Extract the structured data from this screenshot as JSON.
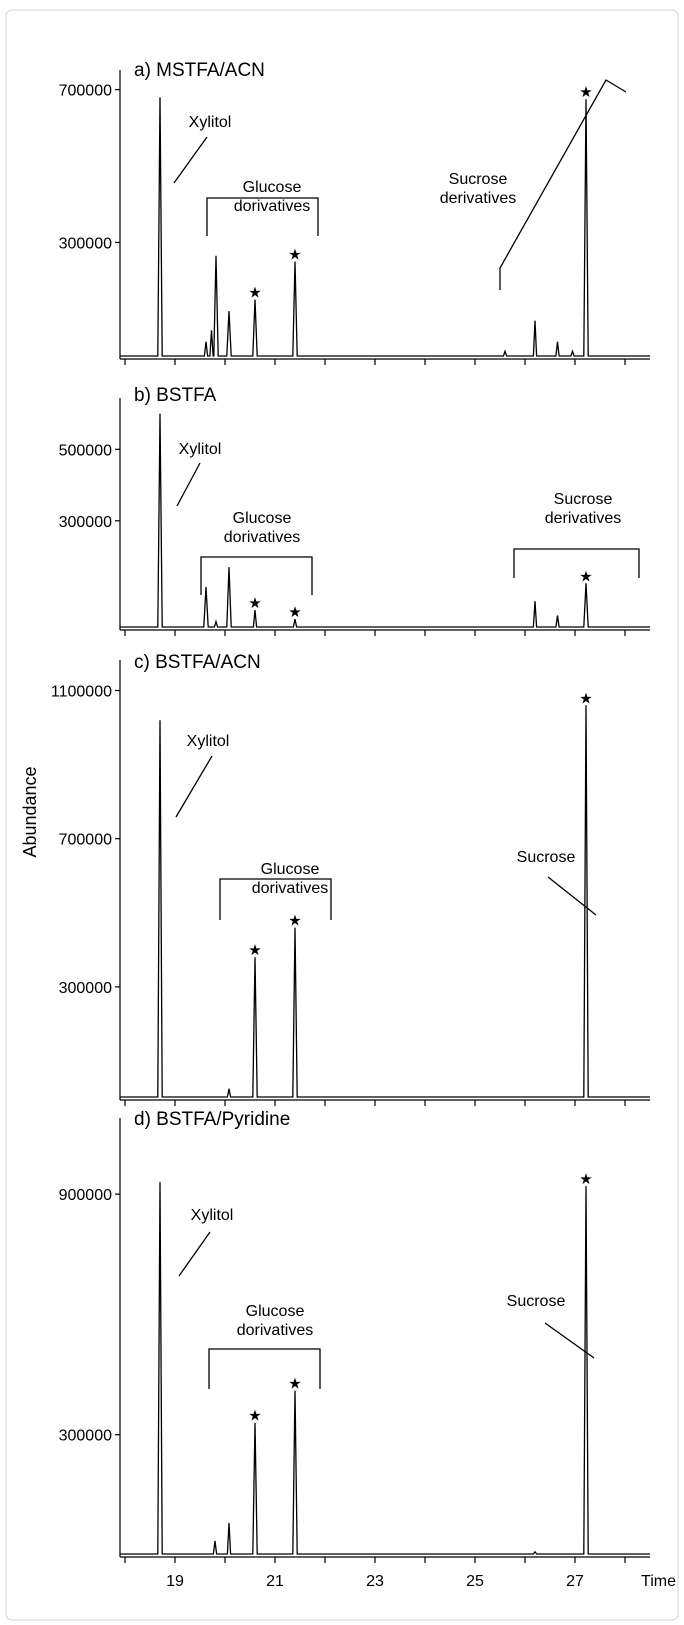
{
  "chart_data": {
    "type": "line",
    "ylabel": "Abundance",
    "xlabel": "Time",
    "xlim": [
      17.9,
      28.5
    ],
    "x_ticks": [
      19,
      21,
      23,
      25,
      27
    ],
    "x_tick_labels": [
      "19",
      "21",
      "23",
      "25",
      "27"
    ],
    "panels": [
      {
        "title": "a) MSTFA/ACN",
        "ylim": [
          0,
          720000
        ],
        "y_ticks": [
          300000,
          700000
        ],
        "y_tick_labels": [
          "300000",
          "700000"
        ],
        "peaks": [
          {
            "x": 18.7,
            "y": 680000
          },
          {
            "x": 19.62,
            "y": 40000
          },
          {
            "x": 19.73,
            "y": 70000
          },
          {
            "x": 19.82,
            "y": 265000
          },
          {
            "x": 20.08,
            "y": 120000
          },
          {
            "x": 20.6,
            "y": 150000,
            "star": true
          },
          {
            "x": 21.4,
            "y": 250000,
            "star": true
          },
          {
            "x": 25.6,
            "y": 15000
          },
          {
            "x": 26.2,
            "y": 95000
          },
          {
            "x": 26.65,
            "y": 40000
          },
          {
            "x": 26.95,
            "y": 15000
          },
          {
            "x": 27.22,
            "y": 675000,
            "star": true
          }
        ],
        "annotations": [
          {
            "lines": [
              "Xylitol"
            ],
            "target": "Xylitol"
          },
          {
            "lines": [
              "Glucose",
              "dorivatives"
            ],
            "target": "Glucose derivatives"
          },
          {
            "lines": [
              "Sucrose",
              "derivatives"
            ],
            "target": "Sucrose derivatives"
          }
        ]
      },
      {
        "title": "b) BSTFA",
        "ylim": [
          0,
          610000
        ],
        "y_ticks": [
          300000,
          500000
        ],
        "y_tick_labels": [
          "300000",
          "500000"
        ],
        "peaks": [
          {
            "x": 18.7,
            "y": 600000
          },
          {
            "x": 19.62,
            "y": 115000
          },
          {
            "x": 19.82,
            "y": 18000
          },
          {
            "x": 20.08,
            "y": 170000
          },
          {
            "x": 20.6,
            "y": 50000,
            "star": true
          },
          {
            "x": 21.4,
            "y": 25000,
            "star": true
          },
          {
            "x": 26.2,
            "y": 75000
          },
          {
            "x": 26.65,
            "y": 35000
          },
          {
            "x": 27.22,
            "y": 125000,
            "star": true
          }
        ],
        "annotations": [
          {
            "lines": [
              "Xylitol"
            ],
            "target": "Xylitol"
          },
          {
            "lines": [
              "Glucose",
              "dorivatives"
            ],
            "target": "Glucose derivatives"
          },
          {
            "lines": [
              "Sucrose",
              "derivatives"
            ],
            "target": "Sucrose derivatives"
          }
        ]
      },
      {
        "title": "c) BSTFA/ACN",
        "ylim": [
          0,
          1150000
        ],
        "y_ticks": [
          300000,
          700000,
          1100000
        ],
        "y_tick_labels": [
          "300000",
          "700000",
          "1100000"
        ],
        "peaks": [
          {
            "x": 18.7,
            "y": 1020000
          },
          {
            "x": 20.08,
            "y": 25000
          },
          {
            "x": 20.6,
            "y": 380000,
            "star": true
          },
          {
            "x": 21.4,
            "y": 460000,
            "star": true
          },
          {
            "x": 27.22,
            "y": 1060000,
            "star": true
          }
        ],
        "annotations": [
          {
            "lines": [
              "Xylitol"
            ],
            "target": "Xylitol"
          },
          {
            "lines": [
              "Glucose",
              "dorivatives"
            ],
            "target": "Glucose derivatives"
          },
          {
            "lines": [
              "Sucrose"
            ],
            "target": "Sucrose"
          }
        ]
      },
      {
        "title": "d) BSTFA/Pyridine",
        "ylim": [
          0,
          1060000
        ],
        "y_ticks": [
          300000,
          900000
        ],
        "y_tick_labels": [
          "300000",
          "900000"
        ],
        "peaks": [
          {
            "x": 18.7,
            "y": 930000
          },
          {
            "x": 19.8,
            "y": 35000
          },
          {
            "x": 20.08,
            "y": 80000
          },
          {
            "x": 20.6,
            "y": 330000,
            "star": true
          },
          {
            "x": 21.4,
            "y": 410000,
            "star": true
          },
          {
            "x": 26.2,
            "y": 8000
          },
          {
            "x": 27.22,
            "y": 920000,
            "star": true
          }
        ],
        "annotations": [
          {
            "lines": [
              "Xylitol"
            ],
            "target": "Xylitol"
          },
          {
            "lines": [
              "Glucose",
              "dorivatives"
            ],
            "target": "Glucose derivatives"
          },
          {
            "lines": [
              "Sucrose"
            ],
            "target": "Sucrose"
          }
        ]
      }
    ]
  }
}
